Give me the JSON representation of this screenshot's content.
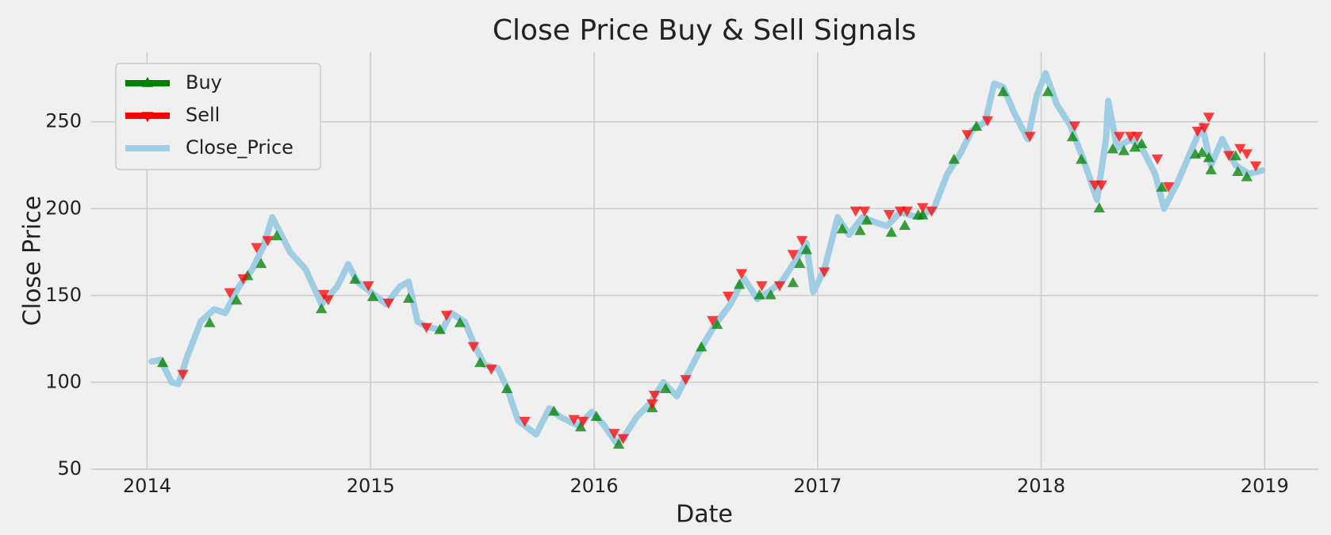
{
  "chart_data": {
    "type": "line",
    "title": "Close Price Buy & Sell Signals",
    "x_label": "Date",
    "y_label": "Close Price",
    "xlim": [
      2013.75,
      2019.24
    ],
    "xticks": [
      2014,
      2015,
      2016,
      2017,
      2018,
      2019
    ],
    "ylim": [
      50,
      290
    ],
    "yticks": [
      50,
      100,
      150,
      200,
      250
    ],
    "grid": true,
    "legend": "upper left",
    "series": [
      {
        "name": "Buy",
        "color": "green",
        "marker": "triangle-up",
        "x": [
          2014.07,
          2014.28,
          2014.4,
          2014.45,
          2014.51,
          2014.58,
          2014.78,
          2014.93,
          2015.01,
          2015.17,
          2015.31,
          2015.4,
          2015.49,
          2015.61,
          2015.82,
          2015.94,
          2016.01,
          2016.11,
          2016.26,
          2016.32,
          2016.48,
          2016.55,
          2016.65,
          2016.74,
          2016.79,
          2016.89,
          2016.92,
          2016.95,
          2017.11,
          2017.19,
          2017.22,
          2017.33,
          2017.39,
          2017.45,
          2017.47,
          2017.61,
          2017.71,
          2017.83,
          2018.03,
          2018.14,
          2018.18,
          2018.26,
          2018.32,
          2018.37,
          2018.42,
          2018.45,
          2018.54,
          2018.69,
          2018.72,
          2018.75,
          2018.76,
          2018.87,
          2018.88,
          2018.92
        ],
        "values": [
          111,
          134,
          147,
          161,
          168,
          184,
          142,
          159,
          149,
          148,
          130,
          134,
          111,
          96,
          83,
          74,
          80,
          64,
          85,
          96,
          120,
          133,
          156,
          150,
          150,
          157,
          168,
          176,
          188,
          187,
          193,
          186,
          190,
          196,
          196,
          228,
          247,
          267,
          267,
          241,
          228,
          200,
          234,
          233,
          235,
          237,
          212,
          231,
          232,
          229,
          222,
          230,
          221,
          218
        ]
      },
      {
        "name": "Sell",
        "color": "red",
        "marker": "triangle-down",
        "x": [
          2014.16,
          2014.37,
          2014.43,
          2014.49,
          2014.54,
          2014.79,
          2014.81,
          2014.99,
          2015.08,
          2015.25,
          2015.34,
          2015.46,
          2015.54,
          2015.69,
          2015.91,
          2015.95,
          2016.09,
          2016.13,
          2016.26,
          2016.27,
          2016.41,
          2016.53,
          2016.6,
          2016.66,
          2016.75,
          2016.83,
          2016.89,
          2016.93,
          2017.03,
          2017.17,
          2017.21,
          2017.32,
          2017.37,
          2017.4,
          2017.47,
          2017.51,
          2017.67,
          2017.76,
          2017.95,
          2018.15,
          2018.24,
          2018.27,
          2018.35,
          2018.4,
          2018.43,
          2018.52,
          2018.57,
          2018.7,
          2018.73,
          2018.75,
          2018.84,
          2018.89,
          2018.92,
          2018.96
        ],
        "values": [
          105,
          152,
          160,
          178,
          182,
          151,
          148,
          156,
          146,
          132,
          139,
          121,
          108,
          78,
          79,
          78,
          71,
          68,
          88,
          93,
          102,
          136,
          150,
          163,
          156,
          156,
          174,
          182,
          164,
          199,
          199,
          197,
          199,
          199,
          201,
          199,
          243,
          251,
          242,
          248,
          214,
          214,
          242,
          242,
          242,
          229,
          213,
          245,
          247,
          253,
          231,
          235,
          232,
          225
        ]
      },
      {
        "name": "Close_Price",
        "color": "#9fcde4",
        "marker": "none",
        "x": [
          2014.02,
          2014.06,
          2014.11,
          2014.14,
          2014.18,
          2014.24,
          2014.3,
          2014.35,
          2014.41,
          2014.47,
          2014.52,
          2014.56,
          2014.64,
          2014.71,
          2014.78,
          2014.85,
          2014.9,
          2014.94,
          2015.02,
          2015.07,
          2015.13,
          2015.17,
          2015.21,
          2015.25,
          2015.32,
          2015.36,
          2015.42,
          2015.47,
          2015.51,
          2015.57,
          2015.61,
          2015.66,
          2015.74,
          2015.8,
          2015.85,
          2015.93,
          2015.99,
          2016.04,
          2016.1,
          2016.14,
          2016.19,
          2016.25,
          2016.31,
          2016.37,
          2016.42,
          2016.48,
          2016.54,
          2016.61,
          2016.67,
          2016.73,
          2016.78,
          2016.84,
          2016.9,
          2016.95,
          2016.98,
          2017.03,
          2017.09,
          2017.14,
          2017.2,
          2017.26,
          2017.31,
          2017.37,
          2017.45,
          2017.52,
          2017.58,
          2017.64,
          2017.69,
          2017.75,
          2017.79,
          2017.83,
          2017.88,
          2017.94,
          2017.98,
          2018.02,
          2018.07,
          2018.13,
          2018.19,
          2018.25,
          2018.29,
          2018.3,
          2018.34,
          2018.4,
          2018.45,
          2018.51,
          2018.55,
          2018.61,
          2018.66,
          2018.72,
          2018.76,
          2018.81,
          2018.87,
          2018.93,
          2018.99
        ],
        "values": [
          112,
          113,
          100,
          99,
          115,
          135,
          142,
          140,
          155,
          165,
          178,
          195,
          175,
          165,
          145,
          155,
          168,
          158,
          150,
          145,
          155,
          158,
          135,
          132,
          130,
          140,
          135,
          120,
          110,
          108,
          97,
          78,
          70,
          85,
          80,
          75,
          83,
          76,
          65,
          70,
          80,
          88,
          100,
          92,
          105,
          120,
          133,
          145,
          160,
          148,
          152,
          158,
          170,
          180,
          152,
          165,
          195,
          185,
          195,
          192,
          190,
          198,
          195,
          200,
          220,
          232,
          245,
          250,
          272,
          270,
          255,
          240,
          265,
          278,
          260,
          248,
          228,
          205,
          240,
          262,
          235,
          240,
          235,
          220,
          200,
          215,
          230,
          248,
          225,
          240,
          225,
          220,
          222
        ]
      }
    ]
  }
}
